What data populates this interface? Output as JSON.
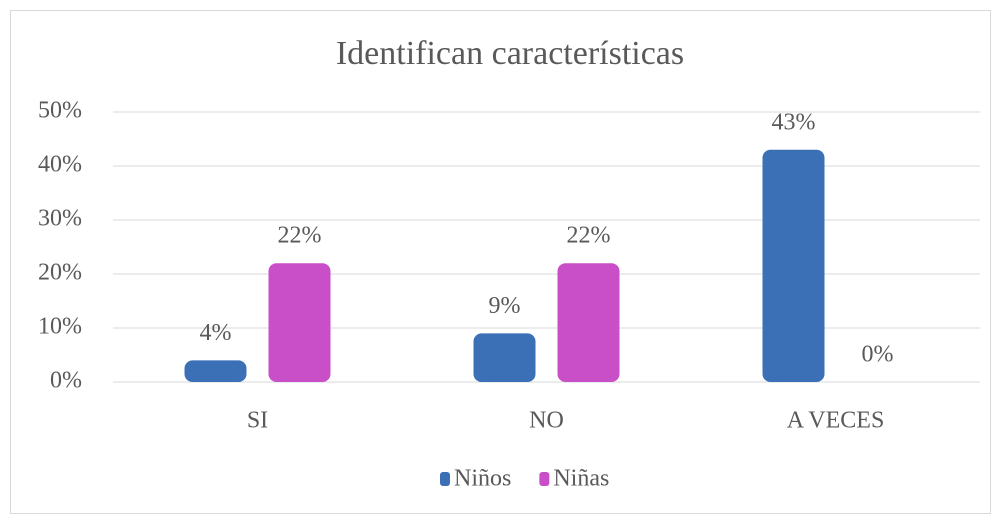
{
  "chart_data": {
    "type": "bar",
    "title": "Identifican características",
    "categories": [
      "SI",
      "NO",
      "A VECES"
    ],
    "series": [
      {
        "name": "Niños",
        "color": "#3b6fb6",
        "values": [
          4,
          9,
          43
        ],
        "value_labels": [
          "4%",
          "9%",
          "43%"
        ]
      },
      {
        "name": "Niñas",
        "color": "#c84fc8",
        "values": [
          22,
          22,
          0
        ],
        "value_labels": [
          "22%",
          "22%",
          "0%"
        ]
      }
    ],
    "ylim": [
      0,
      50
    ],
    "yticks": [
      {
        "value": 0,
        "label": "0%"
      },
      {
        "value": 10,
        "label": "10%"
      },
      {
        "value": 20,
        "label": "20%"
      },
      {
        "value": 30,
        "label": "30%"
      },
      {
        "value": 40,
        "label": "40%"
      },
      {
        "value": 50,
        "label": "50%"
      }
    ],
    "grid": true,
    "legend": "bottom"
  }
}
